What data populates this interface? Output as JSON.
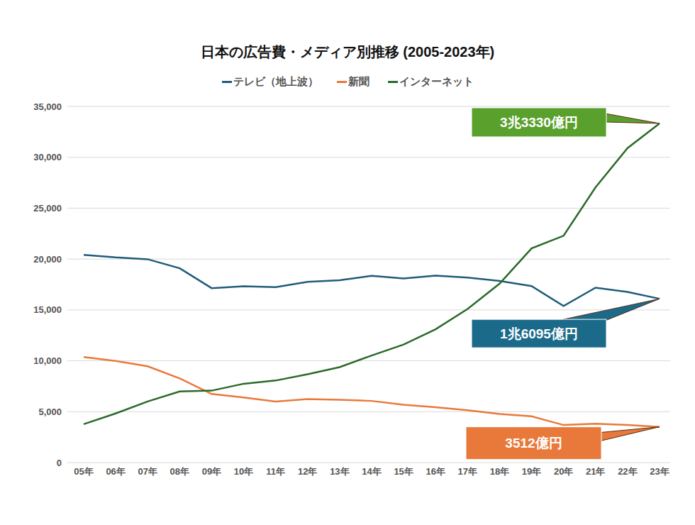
{
  "chart_data": {
    "type": "line",
    "title": "日本の広告費・メディア別推移 (2005-2023年)",
    "categories": [
      "05年",
      "06年",
      "07年",
      "08年",
      "09年",
      "10年",
      "11年",
      "12年",
      "13年",
      "14年",
      "15年",
      "16年",
      "17年",
      "18年",
      "19年",
      "20年",
      "21年",
      "22年",
      "23年"
    ],
    "series": [
      {
        "name": "テレビ（地上波）",
        "color": "#1f5c7a",
        "values": [
          20411,
          20161,
          19981,
          19092,
          17139,
          17321,
          17237,
          17757,
          17913,
          18347,
          18088,
          18374,
          18178,
          17848,
          17345,
          15386,
          17184,
          16768,
          16095
        ]
      },
      {
        "name": "新聞",
        "color": "#e8793a",
        "values": [
          10377,
          9986,
          9462,
          8276,
          6739,
          6396,
          5990,
          6242,
          6170,
          6057,
          5679,
          5431,
          5147,
          4784,
          4547,
          3688,
          3815,
          3697,
          3512
        ]
      },
      {
        "name": "インターネット",
        "color": "#2a6a2a",
        "values": [
          3777,
          4826,
          6003,
          6983,
          7069,
          7747,
          8062,
          8680,
          9381,
          10519,
          11594,
          13100,
          15094,
          17589,
          21048,
          22290,
          27052,
          30912,
          33330
        ]
      }
    ],
    "ylim": [
      0,
      35000
    ],
    "yticks": [
      0,
      {
        "value": 5000,
        "label": "5,000"
      },
      {
        "value": 10000,
        "label": "10,000"
      },
      {
        "value": 15000,
        "label": "15,000"
      },
      {
        "value": 20000,
        "label": "20,000"
      },
      {
        "value": 25000,
        "label": "25,000"
      },
      {
        "value": 30000,
        "label": "30,000"
      },
      {
        "value": 35000,
        "label": "35,000"
      }
    ],
    "grid": true,
    "legend": "top",
    "annotations": [
      {
        "text": "3兆3330億円",
        "series": "インターネット",
        "x": "23年",
        "color": "#5aa02c"
      },
      {
        "text": "1兆6095億円",
        "series": "テレビ（地上波）",
        "x": "23年",
        "color": "#1c6a8a"
      },
      {
        "text": "3512億円",
        "series": "新聞",
        "x": "23年",
        "color": "#e8793a"
      }
    ]
  }
}
